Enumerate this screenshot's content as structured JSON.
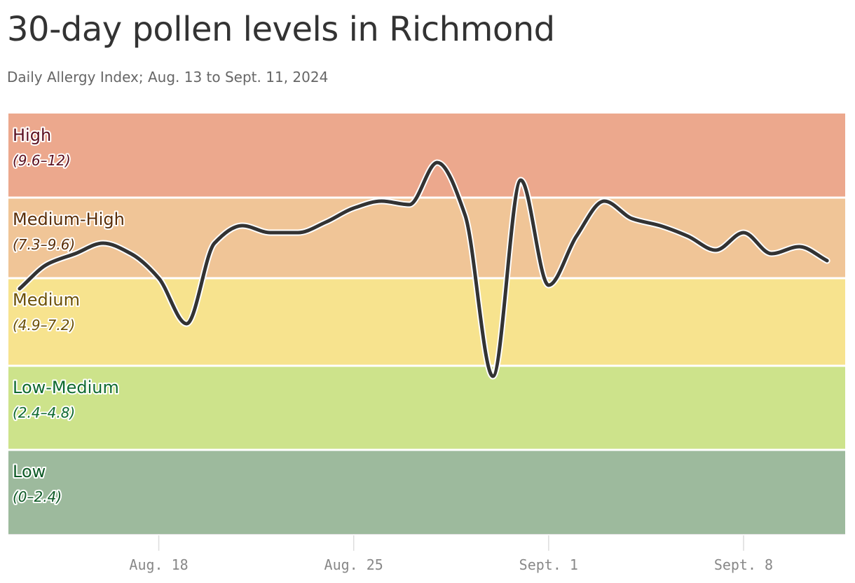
{
  "title": "30-day pollen levels in Richmond",
  "subtitle": "Daily Allergy Index; Aug. 13 to Sept. 11, 2024",
  "chart_data": {
    "type": "line",
    "title": "30-day pollen levels in Richmond",
    "subtitle": "Daily Allergy Index; Aug. 13 to Sept. 11, 2024",
    "xlabel": "",
    "ylabel": "",
    "ylim": [
      0,
      12
    ],
    "x": [
      "2024-08-13",
      "2024-08-14",
      "2024-08-15",
      "2024-08-16",
      "2024-08-17",
      "2024-08-18",
      "2024-08-19",
      "2024-08-20",
      "2024-08-21",
      "2024-08-22",
      "2024-08-23",
      "2024-08-24",
      "2024-08-25",
      "2024-08-26",
      "2024-08-27",
      "2024-08-28",
      "2024-08-29",
      "2024-08-30",
      "2024-08-31",
      "2024-09-01",
      "2024-09-02",
      "2024-09-03",
      "2024-09-04",
      "2024-09-05",
      "2024-09-06",
      "2024-09-07",
      "2024-09-08",
      "2024-09-09",
      "2024-09-10",
      "2024-09-11"
    ],
    "series": [
      {
        "values": [
          7.0,
          7.7,
          8.0,
          8.3,
          8.0,
          7.3,
          6.0,
          8.3,
          8.8,
          8.6,
          8.6,
          8.9,
          9.3,
          9.5,
          9.4,
          10.6,
          9.1,
          4.5,
          10.1,
          7.1,
          8.5,
          9.5,
          9.0,
          8.8,
          8.5,
          8.1,
          8.6,
          8.0,
          8.2,
          7.8
        ]
      }
    ],
    "bands": [
      {
        "name": "High",
        "range": "(9.6–12)",
        "min": 9.6,
        "max": 12,
        "fill": "#eca88d",
        "text": "#5c1020"
      },
      {
        "name": "Medium-High",
        "range": "(7.3–9.6)",
        "min": 7.3,
        "max": 9.6,
        "fill": "#f0c597",
        "text": "#5a2e08"
      },
      {
        "name": "Medium",
        "range": "(4.9–7.2)",
        "min": 4.8,
        "max": 7.3,
        "fill": "#f7e38e",
        "text": "#6b5006"
      },
      {
        "name": "Low-Medium",
        "range": "(2.4–4.8)",
        "min": 2.4,
        "max": 4.8,
        "fill": "#cde38b",
        "text": "#0f6a30"
      },
      {
        "name": "Low",
        "range": "(0–2.4)",
        "min": 0,
        "max": 2.4,
        "fill": "#9dba9d",
        "text": "#0e5a26"
      }
    ],
    "x_ticks": [
      {
        "date": "2024-08-18",
        "label": "Aug. 18"
      },
      {
        "date": "2024-08-25",
        "label": "Aug. 25"
      },
      {
        "date": "2024-09-01",
        "label": "Sept. 1"
      },
      {
        "date": "2024-09-08",
        "label": "Sept. 8"
      }
    ],
    "colors": {
      "line": "#333333",
      "line_halo": "#ffffff",
      "tick_text": "#888888",
      "axis": "#dddddd"
    },
    "grid": false,
    "legend": "none"
  }
}
